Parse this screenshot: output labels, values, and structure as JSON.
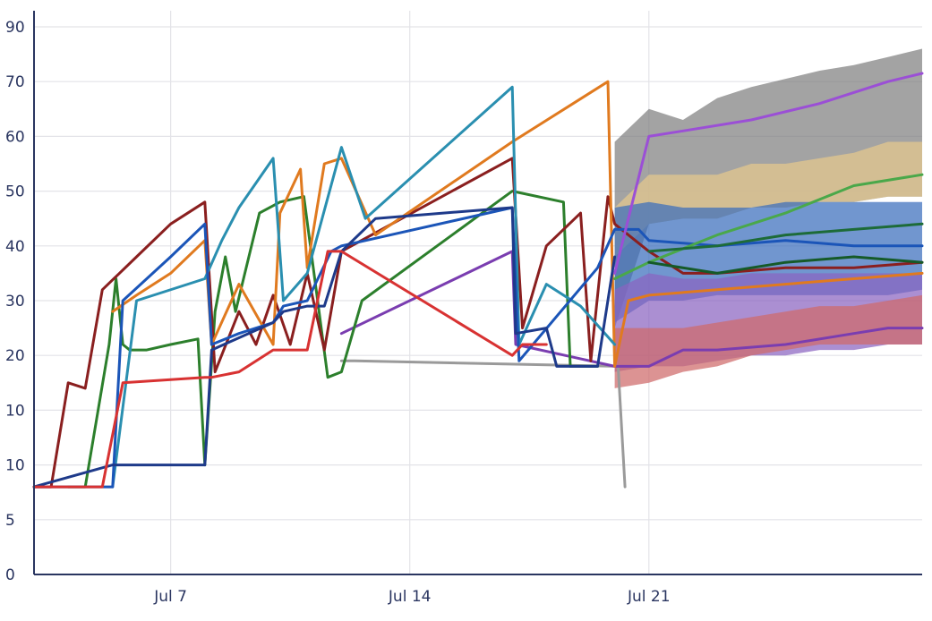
{
  "chart_data": {
    "type": "line",
    "x_axis": {
      "type": "date",
      "ticks": [
        {
          "date": "2023-07-07",
          "label": "Jul 7"
        },
        {
          "date": "2023-07-14",
          "label": "Jul 14"
        },
        {
          "date": "2023-07-21",
          "label": "Jul 21"
        }
      ],
      "range": [
        "2023-07-03",
        "2023-07-29"
      ]
    },
    "y_axis": {
      "ticks": [
        "0",
        "5",
        "10",
        "10",
        "20",
        "30",
        "40",
        "50",
        "60",
        "70",
        "90"
      ]
    },
    "grid": true,
    "legend": "none",
    "bands": [
      {
        "color": "#7f7f7f",
        "x": [
          "2023-07-20",
          "2023-07-21",
          "2023-07-22",
          "2023-07-23",
          "2023-07-24",
          "2023-07-25",
          "2023-07-26",
          "2023-07-27",
          "2023-07-28",
          "2023-07-29"
        ],
        "upper": [
          59,
          65,
          63,
          67,
          69,
          71,
          74,
          76,
          79,
          82
        ],
        "lower": [
          25,
          44,
          45,
          45,
          47,
          47,
          48,
          48,
          49,
          49
        ]
      },
      {
        "color": "#e6c98d",
        "x": [
          "2023-07-20",
          "2023-07-21",
          "2023-07-22",
          "2023-07-23",
          "2023-07-24",
          "2023-07-25",
          "2023-07-26",
          "2023-07-27",
          "2023-07-28",
          "2023-07-29"
        ],
        "upper": [
          47,
          53,
          53,
          53,
          55,
          55,
          56,
          57,
          59,
          59
        ],
        "lower": [
          38,
          44,
          45,
          45,
          47,
          47,
          48,
          48,
          49,
          49
        ]
      },
      {
        "color": "#3a6ebd",
        "x": [
          "2023-07-20",
          "2023-07-21",
          "2023-07-22",
          "2023-07-23",
          "2023-07-24",
          "2023-07-25",
          "2023-07-26",
          "2023-07-27",
          "2023-07-28",
          "2023-07-29"
        ],
        "upper": [
          47,
          48,
          47,
          47,
          47,
          48,
          48,
          48,
          48,
          48
        ],
        "lower": [
          26,
          30,
          30,
          31,
          31,
          31,
          31,
          31,
          31,
          32
        ]
      },
      {
        "color": "#8a64c0",
        "x": [
          "2023-07-20",
          "2023-07-21",
          "2023-07-22",
          "2023-07-23",
          "2023-07-24",
          "2023-07-25",
          "2023-07-26",
          "2023-07-27",
          "2023-07-28",
          "2023-07-29"
        ],
        "upper": [
          32,
          35,
          34,
          34,
          35,
          35,
          35,
          35,
          35,
          35
        ],
        "lower": [
          17,
          18,
          18,
          19,
          20,
          20,
          21,
          21,
          22,
          22
        ]
      },
      {
        "color": "#cf6a6a",
        "x": [
          "2023-07-20",
          "2023-07-21",
          "2023-07-22",
          "2023-07-23",
          "2023-07-24",
          "2023-07-25",
          "2023-07-26",
          "2023-07-27",
          "2023-07-28",
          "2023-07-29"
        ],
        "upper": [
          25,
          25,
          25,
          26,
          27,
          28,
          29,
          29,
          30,
          31
        ],
        "lower": [
          14,
          15,
          17,
          18,
          20,
          21,
          22,
          22,
          22,
          22
        ]
      }
    ],
    "series": [
      {
        "color": "#9a9a9a",
        "x": [
          "2023-07-12",
          "2023-07-12.4",
          "2023-07-20.1",
          "2023-07-20.3"
        ],
        "y": [
          19,
          19,
          18,
          8
        ]
      },
      {
        "color": "#7a3db0",
        "x": [
          "2023-07-12",
          "2023-07-17",
          "2023-07-17.1",
          "2023-07-20",
          "2023-07-21",
          "2023-07-22",
          "2023-07-23",
          "2023-07-25",
          "2023-07-27",
          "2023-07-28",
          "2023-07-29"
        ],
        "y": [
          24,
          39,
          22,
          18,
          18,
          21,
          21,
          22,
          24,
          25,
          25
        ]
      },
      {
        "color": "#2c7f2c",
        "x": [
          "2023-07-04",
          "2023-07-04.5",
          "2023-07-05.2",
          "2023-07-05.4",
          "2023-07-05.6",
          "2023-07-05.8",
          "2023-07-06.3",
          "2023-07-07",
          "2023-07-07.8",
          "2023-07-08",
          "2023-07-08.3",
          "2023-07-08.6",
          "2023-07-08.9",
          "2023-07-09.6",
          "2023-07-10.2",
          "2023-07-10.9",
          "2023-07-11.6",
          "2023-07-12",
          "2023-07-12.6",
          "2023-07-17",
          "2023-07-18.5",
          "2023-07-18.7",
          "2023-07-19.5"
        ],
        "y": [
          8,
          8,
          22,
          34,
          22,
          21,
          21,
          22,
          23,
          10,
          28,
          38,
          28,
          46,
          48,
          49,
          16,
          17,
          30,
          50,
          48,
          18,
          18
        ]
      },
      {
        "color": "#8a1f1f",
        "x": [
          "2023-07-03",
          "2023-07-03.5",
          "2023-07-04",
          "2023-07-04.5",
          "2023-07-05",
          "2023-07-05.5",
          "2023-07-06",
          "2023-07-07",
          "2023-07-08",
          "2023-07-08.3",
          "2023-07-09",
          "2023-07-09.5",
          "2023-07-10",
          "2023-07-10.5",
          "2023-07-11",
          "2023-07-11.5",
          "2023-07-12",
          "2023-07-17",
          "2023-07-17.3",
          "2023-07-18",
          "2023-07-19",
          "2023-07-19.3",
          "2023-07-19.8",
          "2023-07-20",
          "2023-07-21",
          "2023-07-22",
          "2023-07-23",
          "2023-07-25",
          "2023-07-27",
          "2023-07-29"
        ],
        "y": [
          8,
          8,
          15,
          14,
          32,
          35,
          38,
          44,
          48,
          17,
          28,
          22,
          31,
          22,
          35,
          21,
          39,
          56,
          25,
          40,
          46,
          19,
          49,
          44,
          39,
          35,
          35,
          36,
          36,
          37
        ]
      },
      {
        "color": "#e07a1f",
        "x": [
          "2023-07-05.3",
          "2023-07-06",
          "2023-07-07",
          "2023-07-08",
          "2023-07-08.2",
          "2023-07-09",
          "2023-07-10",
          "2023-07-10.2",
          "2023-07-10.8",
          "2023-07-11",
          "2023-07-11.5",
          "2023-07-12",
          "2023-07-13",
          "2023-07-17",
          "2023-07-19.8",
          "2023-07-20",
          "2023-07-20.4",
          "2023-07-21",
          "2023-07-23",
          "2023-07-25",
          "2023-07-27",
          "2023-07-29"
        ],
        "y": [
          28,
          31,
          35,
          41,
          22,
          33,
          22,
          46,
          54,
          36,
          55,
          56,
          42,
          59,
          70,
          18,
          30,
          31,
          32,
          33,
          34,
          35
        ]
      },
      {
        "color": "#2a8fb0",
        "x": [
          "2023-07-05.3",
          "2023-07-06",
          "2023-07-08",
          "2023-07-08.5",
          "2023-07-09",
          "2023-07-10",
          "2023-07-10.3",
          "2023-07-11",
          "2023-07-12",
          "2023-07-12.7",
          "2023-07-17",
          "2023-07-17.2",
          "2023-07-18",
          "2023-07-19",
          "2023-07-20"
        ],
        "y": [
          8,
          30,
          34,
          41,
          47,
          56,
          30,
          35,
          58,
          45,
          69,
          22,
          33,
          29,
          22
        ]
      },
      {
        "color": "#1b55b8",
        "x": [
          "2023-07-03",
          "2023-07-05.3",
          "2023-07-05.6",
          "2023-07-07",
          "2023-07-08",
          "2023-07-08.2",
          "2023-07-09",
          "2023-07-10",
          "2023-07-10.3",
          "2023-07-11",
          "2023-07-11.7",
          "2023-07-12",
          "2023-07-17",
          "2023-07-17.2",
          "2023-07-19.5",
          "2023-07-20",
          "2023-07-20.7",
          "2023-07-21",
          "2023-07-23",
          "2023-07-25",
          "2023-07-27",
          "2023-07-29"
        ],
        "y": [
          8,
          8,
          30,
          38,
          44,
          22,
          24,
          26,
          29,
          30,
          39,
          40,
          47,
          19,
          36,
          43,
          43,
          41,
          40,
          41,
          40,
          40
        ]
      },
      {
        "color": "#1e3a8a",
        "x": [
          "2023-07-03",
          "2023-07-05.3",
          "2023-07-08",
          "2023-07-08.2",
          "2023-07-10",
          "2023-07-10.3",
          "2023-07-11",
          "2023-07-11.5",
          "2023-07-12",
          "2023-07-13",
          "2023-07-17",
          "2023-07-17.1",
          "2023-07-18",
          "2023-07-18.3",
          "2023-07-19.5",
          "2023-07-20"
        ],
        "y": [
          8,
          10,
          10,
          21,
          26,
          28,
          29,
          29,
          39,
          45,
          47,
          24,
          25,
          18,
          18,
          38
        ]
      },
      {
        "color": "#d83232",
        "x": [
          "2023-07-03",
          "2023-07-05",
          "2023-07-05.6",
          "2023-07-08",
          "2023-07-08.2",
          "2023-07-09",
          "2023-07-10",
          "2023-07-11",
          "2023-07-11.6",
          "2023-07-12",
          "2023-07-17",
          "2023-07-17.3",
          "2023-07-18"
        ],
        "y": [
          8,
          8,
          15,
          16,
          16,
          17,
          21,
          21,
          39,
          39,
          20,
          22,
          22
        ]
      },
      {
        "color": "#4aa84a",
        "x": [
          "2023-07-20",
          "2023-07-21",
          "2023-07-23",
          "2023-07-25",
          "2023-07-27",
          "2023-07-29"
        ],
        "y": [
          34,
          37,
          42,
          46,
          51,
          53
        ]
      },
      {
        "color": "#1d6b38",
        "x": [
          "2023-07-21",
          "2023-07-23",
          "2023-07-25",
          "2023-07-27",
          "2023-07-29"
        ],
        "y": [
          39,
          40,
          42,
          43,
          44
        ]
      },
      {
        "color": "#155a28",
        "x": [
          "2023-07-21",
          "2023-07-23",
          "2023-07-25",
          "2023-07-27",
          "2023-07-29"
        ],
        "y": [
          37,
          35,
          37,
          38,
          37
        ]
      },
      {
        "color": "#9b4fd6",
        "x": [
          "2023-07-20",
          "2023-07-21",
          "2023-07-22",
          "2023-07-24",
          "2023-07-26",
          "2023-07-28",
          "2023-07-29"
        ],
        "y": [
          35,
          60,
          61,
          63,
          66,
          70,
          73
        ]
      }
    ]
  }
}
